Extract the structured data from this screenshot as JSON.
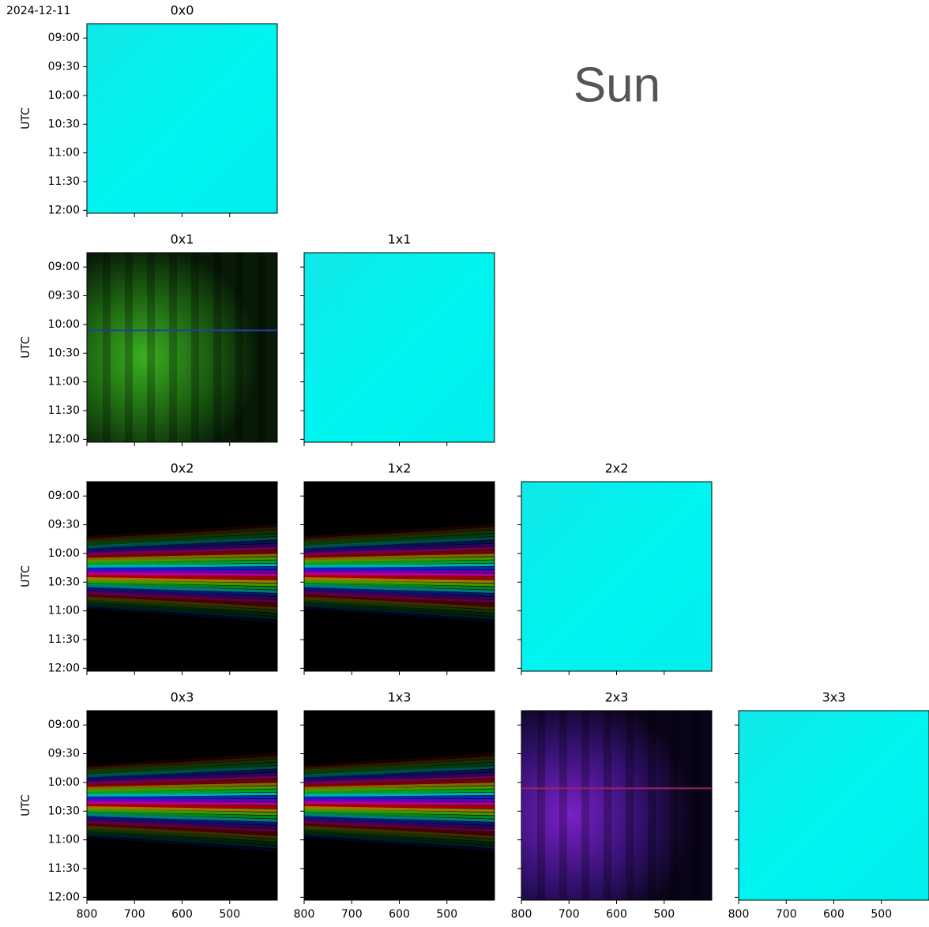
{
  "chart_data": {
    "type": "image-grid",
    "date": "2024-12-11",
    "annotation": "Sun",
    "ylabel": "UTC",
    "xlim": [
      800,
      400
    ],
    "xticks": [
      800,
      700,
      600,
      500
    ],
    "ylim": [
      12.05,
      8.75
    ],
    "yticks": [
      {
        "value": 9,
        "label": "09:00"
      },
      {
        "value": 9.5,
        "label": "09:30"
      },
      {
        "value": 10,
        "label": "10:00"
      },
      {
        "value": 10.5,
        "label": "10:30"
      },
      {
        "value": 11,
        "label": "11:00"
      },
      {
        "value": 11.5,
        "label": "11:30"
      },
      {
        "value": 12,
        "label": "12:00"
      }
    ],
    "panels": [
      {
        "title": "0x0"
      },
      {
        "title": "0x1"
      },
      {
        "title": "1x1"
      },
      {
        "title": "0x2"
      },
      {
        "title": "1x2"
      },
      {
        "title": "2x2"
      },
      {
        "title": "0x3"
      },
      {
        "title": "1x3"
      },
      {
        "title": "2x3"
      },
      {
        "title": "3x3"
      }
    ]
  }
}
